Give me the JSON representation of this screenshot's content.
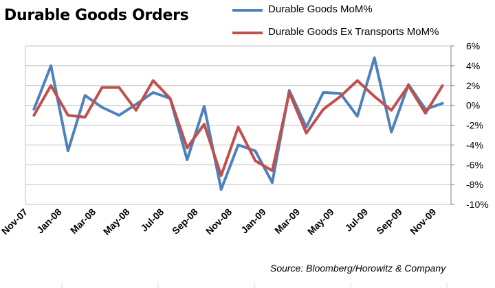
{
  "title": "Durable Goods Orders",
  "source": "Source: Bloomberg/Horowitz & Company",
  "chart_data": {
    "type": "line",
    "title": "Durable Goods Orders",
    "x": [
      "Nov-07",
      "Dec-07",
      "Jan-08",
      "Feb-08",
      "Mar-08",
      "Apr-08",
      "May-08",
      "Jun-08",
      "Jul-08",
      "Aug-08",
      "Sep-08",
      "Oct-08",
      "Nov-08",
      "Dec-08",
      "Jan-09",
      "Feb-09",
      "Mar-09",
      "Apr-09",
      "May-09",
      "Jun-09",
      "Jul-09",
      "Aug-09",
      "Sep-09",
      "Oct-09",
      "Nov-09"
    ],
    "x_tick_labels": [
      "Nov-07",
      "Jan-08",
      "Mar-08",
      "May-08",
      "Jul-08",
      "Sep-08",
      "Nov-08",
      "Jan-09",
      "Mar-09",
      "May-09",
      "Jul-09",
      "Sep-09",
      "Nov-09"
    ],
    "series": [
      {
        "name": "Durable Goods MoM%",
        "color": "#4f81bd",
        "values": [
          -0.4,
          4.0,
          -4.6,
          1.0,
          -0.2,
          -1.0,
          0.1,
          1.3,
          0.7,
          -5.5,
          -0.1,
          -8.5,
          -4.0,
          -4.6,
          -7.8,
          1.5,
          -2.2,
          1.3,
          1.2,
          -1.1,
          4.8,
          -2.7,
          2.1,
          -0.4,
          0.2
        ]
      },
      {
        "name": "Durable Goods Ex Transports  MoM%",
        "color": "#c0504d",
        "values": [
          -1.0,
          2.0,
          -1.0,
          -1.2,
          1.8,
          1.8,
          -0.5,
          2.5,
          0.7,
          -4.3,
          -1.9,
          -7.1,
          -2.2,
          -5.6,
          -6.6,
          1.3,
          -2.8,
          -0.4,
          0.9,
          2.5,
          0.9,
          -0.5,
          2.0,
          -0.8,
          2.0
        ]
      }
    ],
    "ylim": [
      -10,
      6
    ],
    "y_ticks": [
      "6%",
      "4%",
      "2%",
      "0%",
      "-2%",
      "-4%",
      "-6%",
      "-8%",
      "-10%"
    ],
    "y_tick_values": [
      6,
      4,
      2,
      0,
      -2,
      -4,
      -6,
      -8,
      -10
    ],
    "grid": true,
    "legend_position": "top-right",
    "y_axis_side": "right"
  }
}
